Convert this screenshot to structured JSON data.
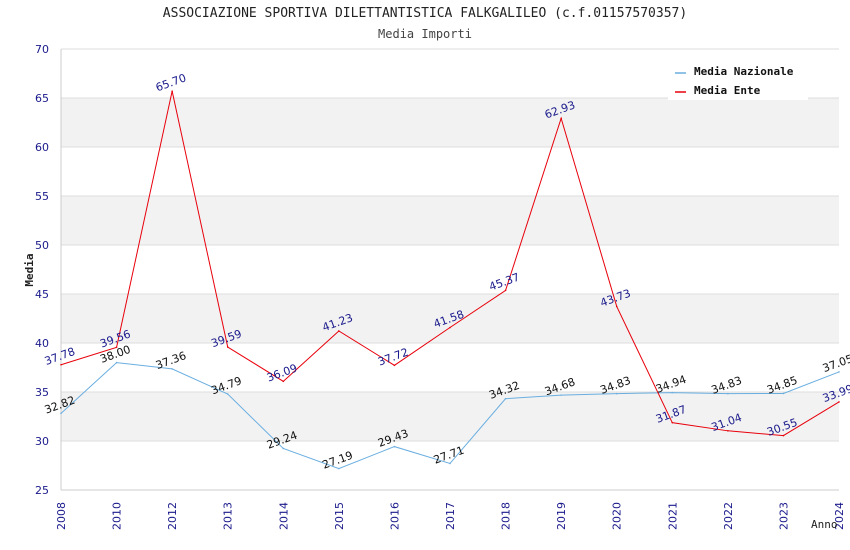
{
  "header": {
    "title": "ASSOCIAZIONE SPORTIVA DILETTANTISTICA FALKGALILEO (c.f.01157570357)",
    "subtitle": "Media Importi"
  },
  "colors": {
    "nazionale": "#6aaee0",
    "ente": "#e8000b",
    "ente_labels": "#1a1a8c",
    "naz_labels": "#111111",
    "ticks": "#1a1a8c",
    "band": "#f2f2f2",
    "grid": "#dddddd"
  },
  "chart_data": {
    "type": "line",
    "title": "Media Importi",
    "xlabel": "Anno",
    "ylabel": "Media",
    "ylim": [
      25,
      70
    ],
    "yticks": [
      25,
      30,
      35,
      40,
      45,
      50,
      55,
      60,
      65,
      70
    ],
    "categories": [
      "2008",
      "2010",
      "2012",
      "2013",
      "2014",
      "2015",
      "2016",
      "2017",
      "2018",
      "2019",
      "2020",
      "2021",
      "2022",
      "2023",
      "2024"
    ],
    "legend_position": "top-right",
    "series": [
      {
        "name": "Media Nazionale",
        "values": [
          32.82,
          38.0,
          37.36,
          34.79,
          29.24,
          27.19,
          29.43,
          27.71,
          34.32,
          34.68,
          34.83,
          34.94,
          34.83,
          34.85,
          37.05
        ],
        "labels": [
          "32.82",
          "38.00",
          "37.36",
          "34.79",
          "29.24",
          "27.19",
          "29.43",
          "27.71",
          "34.32",
          "34.68",
          "34.83",
          "34.94",
          "34.83",
          "34.85",
          "37.05"
        ]
      },
      {
        "name": "Media Ente",
        "values": [
          37.78,
          39.56,
          65.7,
          39.59,
          36.09,
          41.23,
          37.72,
          41.58,
          45.37,
          62.93,
          43.73,
          31.87,
          31.04,
          30.55,
          33.99
        ],
        "labels": [
          "37.78",
          "39.56",
          "65.70",
          "39.59",
          "36.09",
          "41.23",
          "37.72",
          "41.58",
          "45.37",
          "62.93",
          "43.73",
          "31.87",
          "31.04",
          "30.55",
          "33.99"
        ]
      }
    ]
  }
}
